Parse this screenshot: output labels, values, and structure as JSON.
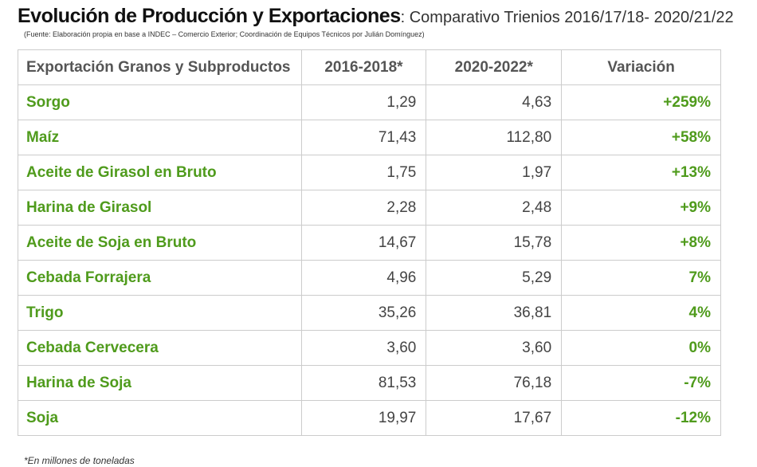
{
  "header": {
    "title": "Evolución de Producción y Exportaciones",
    "subtitle": ": Comparativo Trienios 2016/17/18- 2020/21/22",
    "source": "(Fuente: Elaboración propia en base a INDEC – Comercio Exterior; Coordinación de Equipos Técnicos por Julián Domínguez)"
  },
  "table": {
    "columns": [
      "Exportación Granos y Subproductos",
      "2016-2018*",
      "2020-2022*",
      "Variación"
    ],
    "rows": [
      [
        "Sorgo",
        "1,29",
        "4,63",
        "+259%"
      ],
      [
        "Maíz",
        "71,43",
        "112,80",
        "+58%"
      ],
      [
        "Aceite de Girasol en Bruto",
        "1,75",
        "1,97",
        "+13%"
      ],
      [
        "Harina de Girasol",
        "2,28",
        "2,48",
        "+9%"
      ],
      [
        "Aceite de Soja en Bruto",
        "14,67",
        "15,78",
        "+8%"
      ],
      [
        "Cebada Forrajera",
        "4,96",
        "5,29",
        "7%"
      ],
      [
        "Trigo",
        "35,26",
        "36,81",
        "4%"
      ],
      [
        "Cebada Cervecera",
        "3,60",
        "3,60",
        "0%"
      ],
      [
        "Harina de Soja",
        "81,53",
        "76,18",
        "-7%"
      ],
      [
        "Soja",
        "19,97",
        "17,67",
        "-12%"
      ]
    ]
  },
  "footnote": "*En millones de toneladas"
}
